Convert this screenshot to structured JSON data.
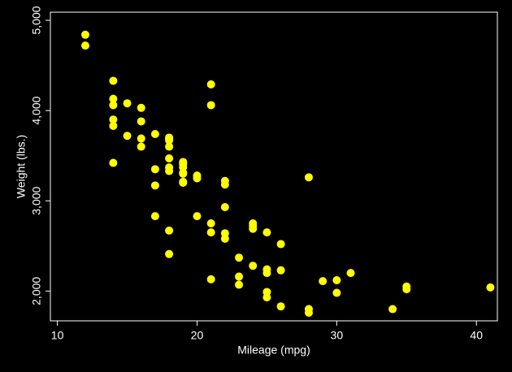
{
  "chart_data": {
    "type": "scatter",
    "x_label": "Mileage (mpg)",
    "y_label": "Weight (lbs.)",
    "color": "#ffff00",
    "x": [
      22,
      17,
      22,
      20,
      15,
      18,
      26,
      20,
      16,
      19,
      14,
      14,
      21,
      29,
      16,
      22,
      22,
      24,
      19,
      30,
      18,
      16,
      17,
      28,
      21,
      12,
      12,
      14,
      22,
      14,
      15,
      18,
      14,
      20,
      21,
      19,
      19,
      18,
      19,
      24,
      16,
      28,
      34,
      25,
      26,
      18,
      18,
      18,
      19,
      19,
      19,
      24,
      17,
      23,
      25,
      23,
      35,
      24,
      21,
      21,
      25,
      28,
      30,
      14,
      26,
      35,
      18,
      31,
      18,
      23,
      41,
      25,
      25,
      17
    ],
    "values": [
      2930,
      3350,
      2640,
      3250,
      4080,
      3670,
      2230,
      3280,
      3880,
      3400,
      4330,
      3900,
      4290,
      2110,
      3690,
      3180,
      3220,
      2750,
      3430,
      2120,
      3600,
      3600,
      3740,
      1800,
      2650,
      4840,
      4720,
      3830,
      2580,
      4060,
      3720,
      3370,
      4130,
      2830,
      4060,
      3310,
      3300,
      3690,
      3370,
      2720,
      4030,
      3260,
      1800,
      2200,
      2520,
      3330,
      3700,
      3470,
      3210,
      3200,
      3420,
      2690,
      2830,
      2070,
      2650,
      2370,
      2020,
      2280,
      2750,
      2130,
      2240,
      1760,
      1980,
      3420,
      1830,
      2050,
      2410,
      2200,
      2670,
      2160,
      2040,
      1930,
      1990,
      3170
    ],
    "xlim": [
      9.5,
      41.5
    ],
    "ylim": [
      1670,
      5090
    ],
    "xticks": [
      10,
      20,
      30,
      40
    ],
    "yticks": [
      {
        "value": 2000,
        "label": "2,000"
      },
      {
        "value": 3000,
        "label": "3,000"
      },
      {
        "value": 4000,
        "label": "4,000"
      },
      {
        "value": 5000,
        "label": "5,000"
      }
    ]
  }
}
